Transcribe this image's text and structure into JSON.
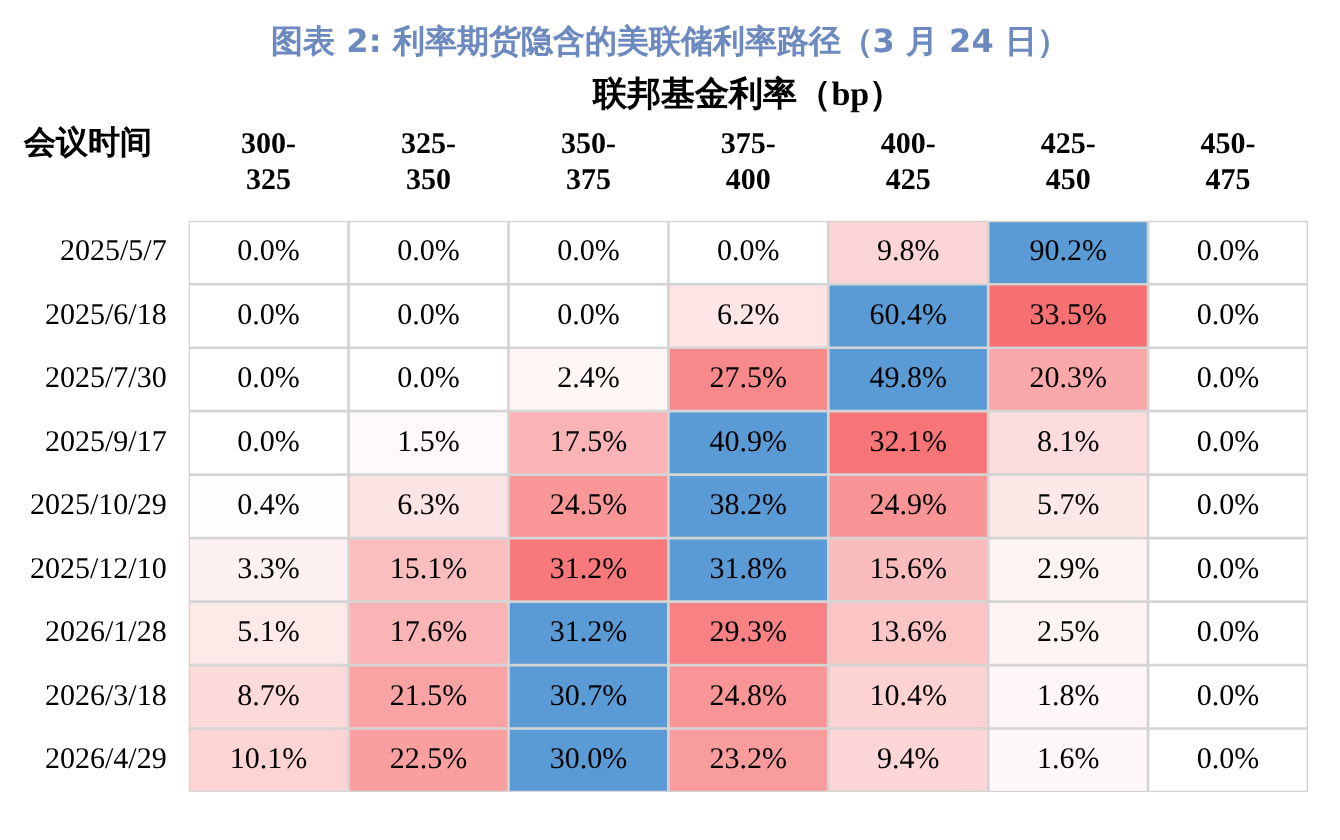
{
  "chart_data": {
    "type": "heatmap",
    "title": "图表 2:  利率期货隐含的美联储利率路径（3 月 24 日）",
    "xlabel": "联邦基金利率（bp）",
    "ylabel": "会议时间",
    "categories": [
      "300-325",
      "325-350",
      "350-375",
      "375-400",
      "400-425",
      "425-450",
      "450-475"
    ],
    "y_categories": [
      "2025/5/7",
      "2025/6/18",
      "2025/7/30",
      "2025/9/17",
      "2025/10/29",
      "2025/12/10",
      "2026/1/28",
      "2026/3/18",
      "2026/4/29"
    ],
    "cells": [
      [
        0,
        0,
        0,
        0,
        9.8,
        90.2,
        0
      ],
      [
        0,
        0,
        0,
        6.2,
        60.4,
        33.5,
        0
      ],
      [
        0,
        0,
        2.4,
        27.5,
        49.8,
        20.3,
        0
      ],
      [
        0,
        1.5,
        17.5,
        40.9,
        32.1,
        8.1,
        0
      ],
      [
        0.4,
        6.3,
        24.5,
        38.2,
        24.9,
        5.7,
        0
      ],
      [
        3.3,
        15.1,
        31.2,
        31.8,
        15.6,
        2.9,
        0
      ],
      [
        5.1,
        17.6,
        31.2,
        29.3,
        13.6,
        2.5,
        0
      ],
      [
        8.7,
        21.5,
        30.7,
        24.8,
        10.4,
        1.8,
        0
      ],
      [
        10.1,
        22.5,
        30.0,
        23.2,
        9.4,
        1.6,
        0
      ]
    ],
    "cell_labels": [
      [
        "0.0%",
        "0.0%",
        "0.0%",
        "0.0%",
        "9.8%",
        "90.2%",
        "0.0%"
      ],
      [
        "0.0%",
        "0.0%",
        "0.0%",
        "6.2%",
        "60.4%",
        "33.5%",
        "0.0%"
      ],
      [
        "0.0%",
        "0.0%",
        "2.4%",
        "27.5%",
        "49.8%",
        "20.3%",
        "0.0%"
      ],
      [
        "0.0%",
        "1.5%",
        "17.5%",
        "40.9%",
        "32.1%",
        "8.1%",
        "0.0%"
      ],
      [
        "0.4%",
        "6.3%",
        "24.5%",
        "38.2%",
        "24.9%",
        "5.7%",
        "0.0%"
      ],
      [
        "3.3%",
        "15.1%",
        "31.2%",
        "31.8%",
        "15.6%",
        "2.9%",
        "0.0%"
      ],
      [
        "5.1%",
        "17.6%",
        "31.2%",
        "29.3%",
        "13.6%",
        "2.5%",
        "0.0%"
      ],
      [
        "8.7%",
        "21.5%",
        "30.7%",
        "24.8%",
        "10.4%",
        "1.8%",
        "0.0%"
      ],
      [
        "10.1%",
        "22.5%",
        "30.0%",
        "23.2%",
        "9.4%",
        "1.6%",
        "0.0%"
      ]
    ]
  }
}
